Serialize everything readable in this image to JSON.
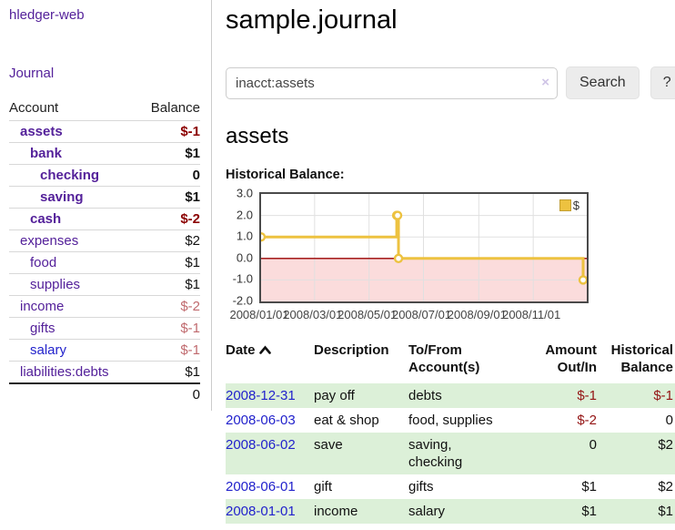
{
  "colors": {
    "link_purple": "#54219a",
    "link_blue": "#2222cc",
    "negative_strong": "#8b0000",
    "negative_soft": "#c06a6e",
    "row_stripe_green": "#dcf0d8",
    "chart_line": "#EDC240"
  },
  "sidebar": {
    "brand": "hledger-web",
    "journal_link": "Journal",
    "accounts": {
      "headers": {
        "account": "Account",
        "balance": "Balance"
      },
      "rows": [
        {
          "name": "assets",
          "depth": 0,
          "bold": true,
          "balance": "$-1",
          "neg": "strong"
        },
        {
          "name": "bank",
          "depth": 1,
          "bold": true,
          "balance": "$1"
        },
        {
          "name": "checking",
          "depth": 2,
          "bold": true,
          "balance": "0"
        },
        {
          "name": "saving",
          "depth": 2,
          "bold": true,
          "balance": "$1"
        },
        {
          "name": "cash",
          "depth": 1,
          "bold": true,
          "balance": "$-2",
          "neg": "strong"
        },
        {
          "name": "expenses",
          "depth": 0,
          "bold": false,
          "balance": "$2"
        },
        {
          "name": "food",
          "depth": 1,
          "bold": false,
          "balance": "$1"
        },
        {
          "name": "supplies",
          "depth": 1,
          "bold": false,
          "balance": "$1"
        },
        {
          "name": "income",
          "depth": 0,
          "bold": false,
          "balance": "$-2",
          "neg": "soft"
        },
        {
          "name": "gifts",
          "depth": 1,
          "bold": false,
          "balance": "$-1",
          "neg": "soft"
        },
        {
          "name": "salary",
          "depth": 1,
          "bold": false,
          "balance": "$-1",
          "neg": "soft",
          "link": "blue"
        },
        {
          "name": "liabilities:debts",
          "depth": 0,
          "bold": false,
          "balance": "$1"
        }
      ],
      "total": "0"
    }
  },
  "main": {
    "title": "sample.journal",
    "search": {
      "value": "inacct:assets",
      "clear_icon": "×",
      "search_button": "Search",
      "help_button": "?"
    },
    "account_heading": "assets",
    "chart_label": "Historical Balance:"
  },
  "chart_data": {
    "type": "line",
    "step": "after",
    "series": [
      {
        "name": "$",
        "points": [
          [
            "2008-01-01",
            1
          ],
          [
            "2008-06-01",
            2
          ],
          [
            "2008-06-02",
            2
          ],
          [
            "2008-06-03",
            0
          ],
          [
            "2008-12-31",
            -1
          ]
        ]
      }
    ],
    "x_range": [
      "2008-01-01",
      "2008-12-31"
    ],
    "x_ticks": [
      "2008/01/01",
      "2008/03/01",
      "2008/05/01",
      "2008/07/01",
      "2008/09/01",
      "2008/11/01"
    ],
    "y_ticks": [
      3.0,
      2.0,
      1.0,
      0.0,
      -1.0,
      -2.0
    ],
    "ylim": [
      -2,
      3
    ],
    "legend": "$",
    "legend_position": "top-right",
    "grid": true,
    "line_color": "#EDC240",
    "marker_fill": "#ffffff",
    "zero_line_color": "#990000",
    "negative_region_fill": "#fbdcdc"
  },
  "register": {
    "headers": {
      "date": "Date",
      "description": "Description",
      "accounts_line1": "To/From",
      "accounts_line2": "Account(s)",
      "amount_line1": "Amount",
      "amount_line2": "Out/In",
      "balance_line1": "Historical",
      "balance_line2": "Balance"
    },
    "rows": [
      {
        "date": "2008-12-31",
        "description": "pay off",
        "accounts": "debts",
        "amount": "$-1",
        "amount_neg": true,
        "balance": "$-1",
        "balance_neg": true,
        "shaded": true
      },
      {
        "date": "2008-06-03",
        "description": "eat & shop",
        "accounts": "food, supplies",
        "amount": "$-2",
        "amount_neg": true,
        "balance": "0",
        "balance_neg": false,
        "shaded": false
      },
      {
        "date": "2008-06-02",
        "description": "save",
        "accounts": "saving, checking",
        "amount": "0",
        "amount_neg": false,
        "balance": "$2",
        "balance_neg": false,
        "shaded": true
      },
      {
        "date": "2008-06-01",
        "description": "gift",
        "accounts": "gifts",
        "amount": "$1",
        "amount_neg": false,
        "balance": "$2",
        "balance_neg": false,
        "shaded": false
      },
      {
        "date": "2008-01-01",
        "description": "income",
        "accounts": "salary",
        "amount": "$1",
        "amount_neg": false,
        "balance": "$1",
        "balance_neg": false,
        "shaded": true
      }
    ]
  }
}
